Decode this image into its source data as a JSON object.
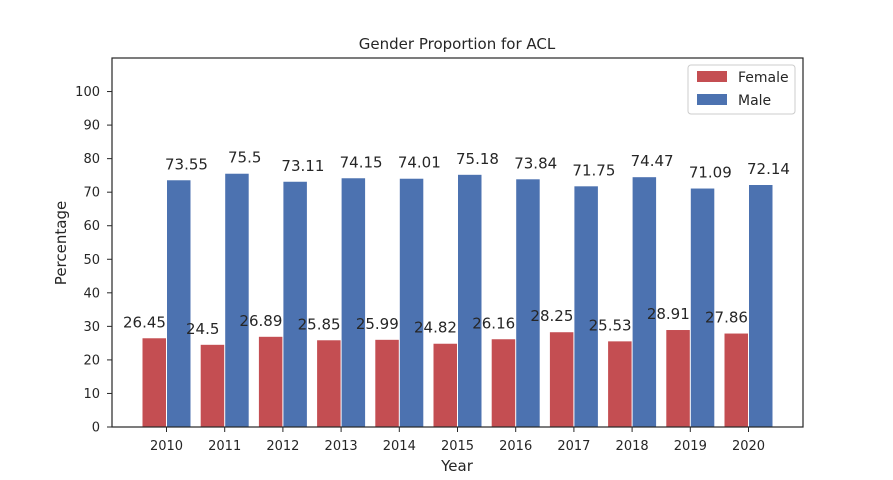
{
  "chart_data": {
    "type": "bar",
    "title": "Gender Proportion for ACL",
    "xlabel": "Year",
    "ylabel": "Percentage",
    "ylim": [
      0,
      110
    ],
    "yticks": [
      0,
      10,
      20,
      30,
      40,
      50,
      60,
      70,
      80,
      90,
      100
    ],
    "categories": [
      "2010",
      "2011",
      "2012",
      "2013",
      "2014",
      "2015",
      "2016",
      "2017",
      "2018",
      "2019",
      "2020"
    ],
    "series": [
      {
        "name": "Female",
        "color": "#c44e52",
        "values": [
          26.45,
          24.5,
          26.89,
          25.85,
          25.99,
          24.82,
          26.16,
          28.25,
          25.53,
          28.91,
          27.86
        ]
      },
      {
        "name": "Male",
        "color": "#4c72b0",
        "values": [
          73.55,
          75.5,
          73.11,
          74.15,
          74.01,
          75.18,
          73.84,
          71.75,
          74.47,
          71.09,
          72.14
        ]
      }
    ],
    "legend": "top-right",
    "grid": false
  }
}
